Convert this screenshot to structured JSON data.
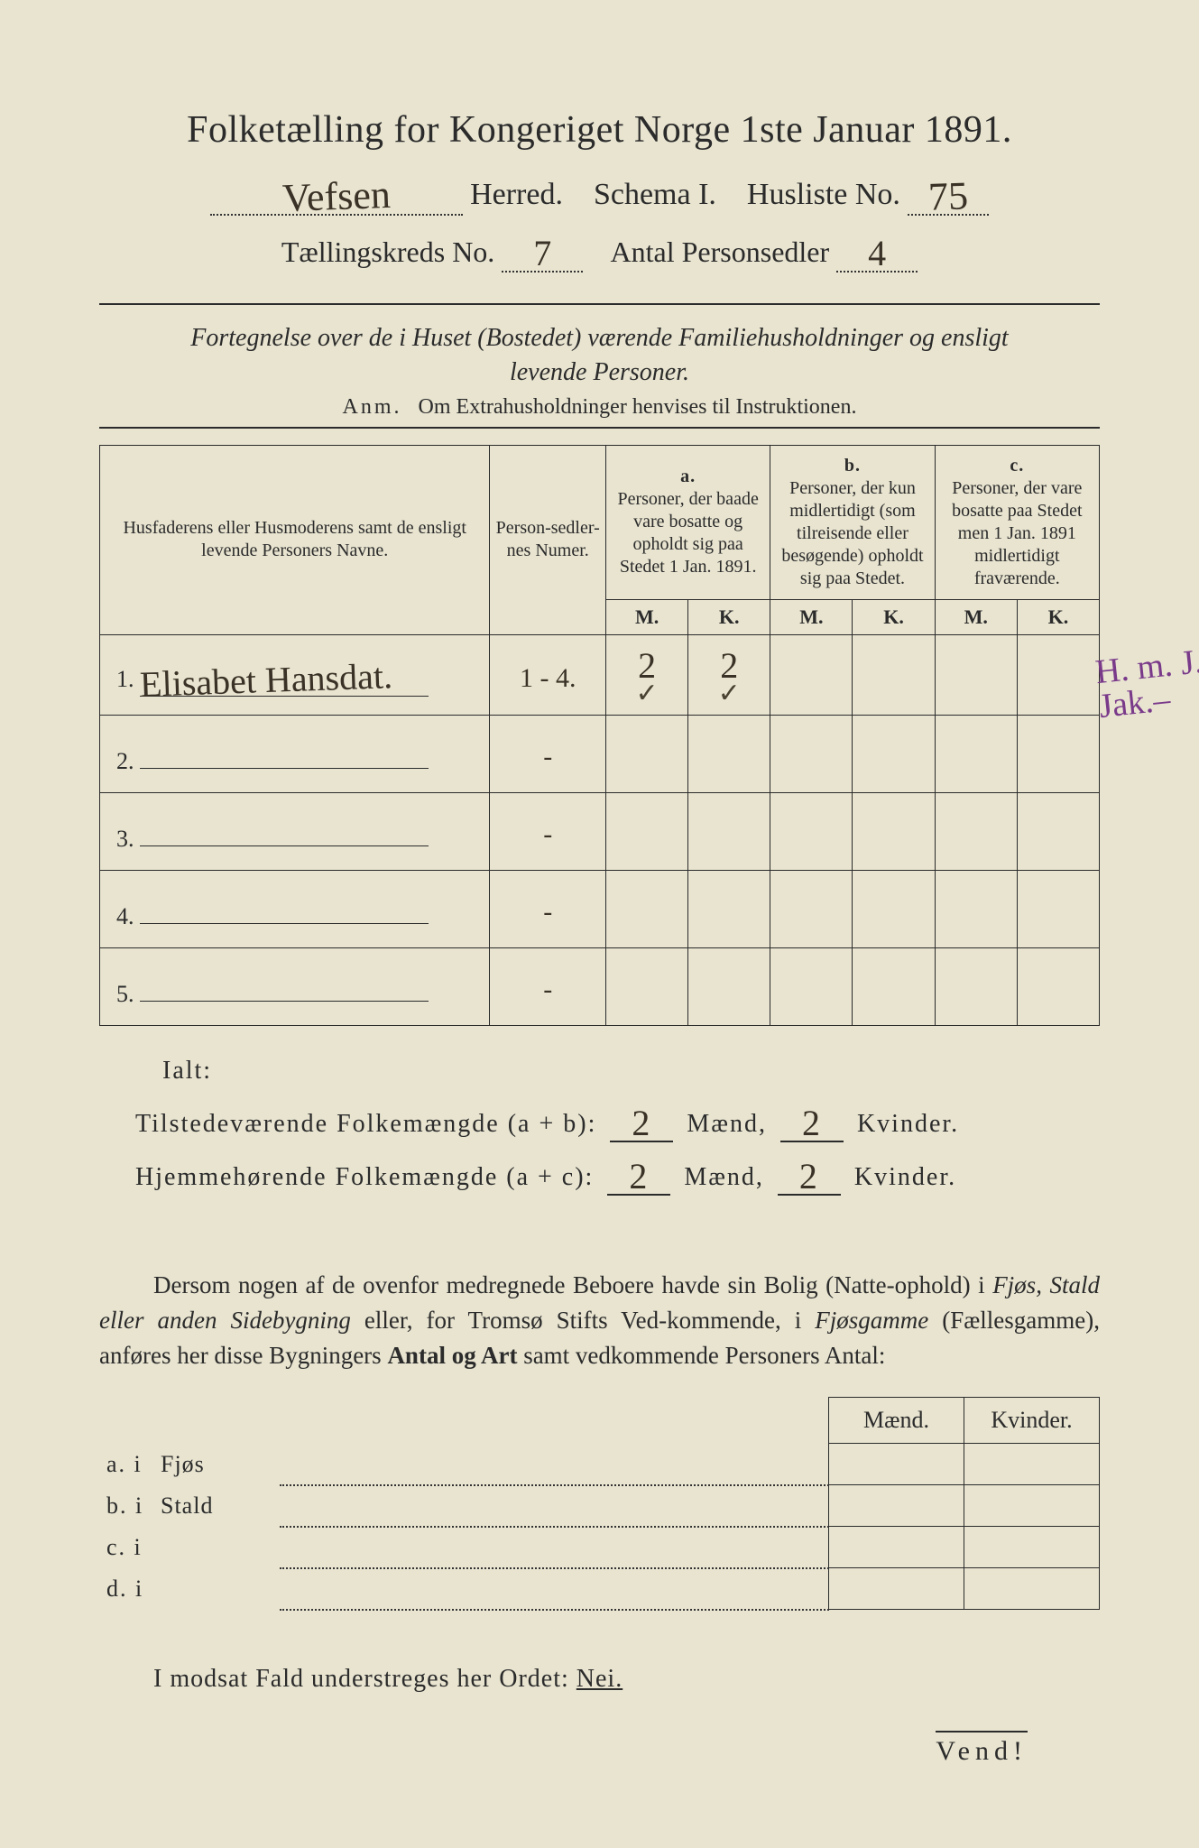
{
  "colors": {
    "paper": "#e8e4d0",
    "ink": "#2b2b2b",
    "handwriting": "#3a3226",
    "margin_note": "#7a3a8a",
    "frame": "#2a2a2a"
  },
  "header": {
    "title": "Folketælling for Kongeriget Norge 1ste Januar 1891.",
    "herred_value": "Vefsen",
    "herred_label": "Herred.",
    "schema_label": "Schema I.",
    "husliste_label": "Husliste No.",
    "husliste_value": "75",
    "kreds_label": "Tællingskreds No.",
    "kreds_value": "7",
    "antal_label": "Antal Personsedler",
    "antal_value": "4"
  },
  "subtitle": {
    "line1": "Fortegnelse over de i Huset (Bostedet) værende Familiehusholdninger og ensligt",
    "line2": "levende Personer.",
    "anm_label": "Anm.",
    "anm_text": "Om Extrahusholdninger henvises til Instruktionen."
  },
  "table": {
    "col_name": "Husfaderens eller Husmoderens samt de ensligt levende Personers Navne.",
    "col_num": "Person-sedler-nes Numer.",
    "col_a_label": "a.",
    "col_a_text": "Personer, der baade vare bosatte og opholdt sig paa Stedet 1 Jan. 1891.",
    "col_b_label": "b.",
    "col_b_text": "Personer, der kun midlertidigt (som tilreisende eller besøgende) opholdt sig paa Stedet.",
    "col_c_label": "c.",
    "col_c_text": "Personer, der vare bosatte paa Stedet men 1 Jan. 1891 midlertidigt fraværende.",
    "m": "M.",
    "k": "K.",
    "rows": [
      {
        "n": "1.",
        "name": "Elisabet Hansdat.",
        "num": "1 - 4.",
        "a_m": "2",
        "a_k": "2",
        "tick_m": "✓",
        "tick_k": "✓",
        "b_m": "",
        "b_k": "",
        "c_m": "",
        "c_k": ""
      },
      {
        "n": "2.",
        "name": "",
        "num": "-",
        "a_m": "",
        "a_k": "",
        "b_m": "",
        "b_k": "",
        "c_m": "",
        "c_k": ""
      },
      {
        "n": "3.",
        "name": "",
        "num": "-",
        "a_m": "",
        "a_k": "",
        "b_m": "",
        "b_k": "",
        "c_m": "",
        "c_k": ""
      },
      {
        "n": "4.",
        "name": "",
        "num": "-",
        "a_m": "",
        "a_k": "",
        "b_m": "",
        "b_k": "",
        "c_m": "",
        "c_k": ""
      },
      {
        "n": "5.",
        "name": "",
        "num": "-",
        "a_m": "",
        "a_k": "",
        "b_m": "",
        "b_k": "",
        "c_m": "",
        "c_k": ""
      }
    ]
  },
  "margin_note": {
    "line1": "H. m. J.",
    "line2": "Jak.–"
  },
  "totals": {
    "ialt": "Ialt:",
    "present_label": "Tilstedeværende Folkemængde (a + b):",
    "home_label": "Hjemmehørende Folkemængde (a + c):",
    "maend": "Mænd,",
    "kvinder": "Kvinder.",
    "present_m": "2",
    "present_k": "2",
    "home_m": "2",
    "home_k": "2"
  },
  "paragraph": "Dersom nogen af de ovenfor medregnede Beboere havde sin Bolig (Natte-ophold) i Fjøs, Stald eller anden Sidebygning eller, for Tromsø Stifts Ved-kommende, i Fjøsgamme (Fællesgamme), anføres her disse Bygningers Antal og Art samt vedkommende Personers Antal:",
  "lower": {
    "maend": "Mænd.",
    "kvinder": "Kvinder.",
    "rows": [
      {
        "lab": "a.  i",
        "word": "Fjøs"
      },
      {
        "lab": "b.  i",
        "word": "Stald"
      },
      {
        "lab": "c.  i",
        "word": ""
      },
      {
        "lab": "d.  i",
        "word": ""
      }
    ]
  },
  "nei": {
    "text_pre": "I modsat Fald understreges her Ordet: ",
    "word": "Nei."
  },
  "vend": "Vend!"
}
